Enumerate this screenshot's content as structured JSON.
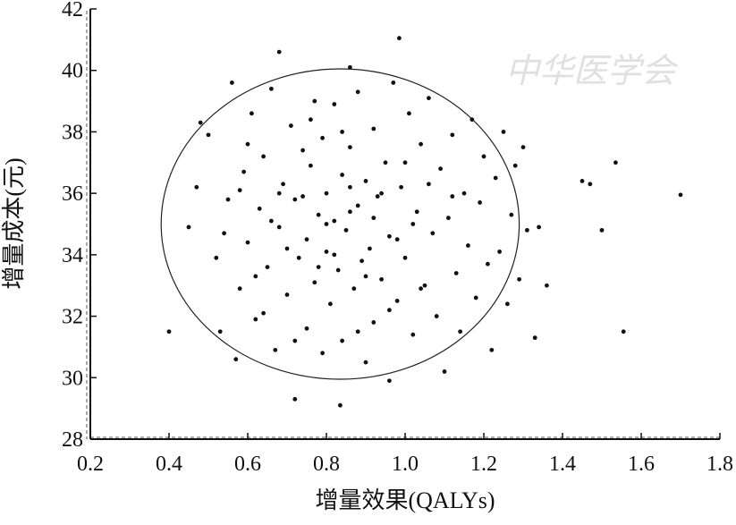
{
  "chart_data": {
    "type": "scatter",
    "xlabel": "增量效果(QALYs)",
    "ylabel": "增量成本(元)",
    "watermark": "中华医学会",
    "color": "#111111",
    "xlim": [
      0.2,
      1.8
    ],
    "ylim": [
      28,
      42
    ],
    "xticks": [
      0.2,
      0.4,
      0.6,
      0.8,
      {
        "value": 1,
        "label": "1.0"
      },
      1.2,
      1.4,
      1.6,
      1.8
    ],
    "yticks": [
      28,
      30,
      32,
      34,
      36,
      38,
      40,
      42
    ],
    "ellipse": {
      "cx": 0.835,
      "cy": 35.0,
      "rx": 0.455,
      "ry": 5.05
    },
    "x": [
      0.4,
      0.45,
      0.47,
      0.48,
      0.5,
      0.52,
      0.53,
      0.55,
      0.56,
      0.57,
      0.58,
      0.59,
      0.6,
      0.61,
      0.62,
      0.63,
      0.64,
      0.65,
      0.66,
      0.67,
      0.68,
      0.68,
      0.69,
      0.7,
      0.71,
      0.72,
      0.72,
      0.73,
      0.74,
      0.75,
      0.75,
      0.76,
      0.77,
      0.77,
      0.78,
      0.79,
      0.79,
      0.8,
      0.8,
      0.81,
      0.82,
      0.82,
      0.83,
      0.835,
      0.84,
      0.84,
      0.85,
      0.86,
      0.86,
      0.87,
      0.88,
      0.88,
      0.89,
      0.9,
      0.9,
      0.91,
      0.92,
      0.92,
      0.93,
      0.94,
      0.95,
      0.96,
      0.96,
      0.97,
      0.98,
      0.985,
      0.99,
      1.0,
      1.01,
      1.02,
      1.03,
      1.04,
      1.05,
      1.06,
      1.07,
      1.08,
      1.09,
      1.1,
      1.11,
      1.12,
      1.13,
      1.14,
      1.15,
      1.16,
      1.17,
      1.18,
      1.19,
      1.2,
      1.21,
      1.22,
      1.23,
      1.24,
      1.25,
      1.26,
      1.27,
      1.28,
      1.29,
      1.3,
      1.31,
      1.33,
      1.34,
      1.36,
      1.45,
      1.47,
      1.5,
      1.535,
      1.555,
      1.7,
      0.54,
      0.58,
      0.62,
      0.66,
      0.7,
      0.74,
      0.78,
      0.82,
      0.86,
      0.9,
      0.94,
      0.98,
      1.02,
      1.06,
      0.64,
      0.72,
      0.88,
      0.96,
      0.76,
      0.84,
      1.0,
      0.6,
      0.68,
      1.12,
      1.04,
      0.86,
      0.8,
      0.92
    ],
    "values": [
      31.5,
      34.9,
      36.2,
      38.3,
      37.9,
      33.9,
      31.5,
      35.8,
      39.6,
      30.6,
      32.9,
      36.7,
      34.4,
      38.6,
      31.9,
      35.5,
      37.2,
      33.6,
      39.4,
      30.9,
      40.6,
      34.9,
      36.3,
      32.7,
      38.2,
      29.3,
      35.8,
      33.9,
      37.4,
      31.6,
      34.5,
      36.9,
      39.0,
      33.1,
      35.3,
      30.8,
      37.8,
      34.1,
      36.0,
      32.4,
      38.9,
      35.1,
      33.5,
      29.1,
      36.6,
      31.2,
      34.8,
      37.5,
      40.1,
      32.9,
      35.6,
      39.3,
      33.8,
      36.4,
      30.5,
      34.2,
      38.1,
      31.8,
      35.9,
      33.2,
      37.0,
      29.9,
      34.6,
      39.6,
      32.5,
      41.05,
      36.2,
      33.9,
      38.6,
      31.4,
      35.4,
      37.6,
      33.0,
      39.1,
      34.7,
      32.0,
      36.8,
      30.2,
      35.2,
      37.9,
      33.4,
      31.5,
      36.0,
      34.3,
      38.4,
      32.6,
      35.7,
      37.2,
      33.7,
      30.9,
      36.5,
      34.1,
      38.0,
      32.4,
      35.3,
      36.9,
      33.2,
      37.5,
      34.8,
      31.3,
      34.9,
      33.0,
      36.4,
      36.3,
      34.8,
      37.0,
      31.5,
      35.95,
      34.7,
      36.1,
      33.3,
      35.1,
      34.2,
      35.9,
      33.6,
      34.0,
      35.4,
      33.3,
      36.0,
      34.5,
      35.0,
      36.3,
      32.1,
      31.2,
      31.5,
      32.2,
      38.4,
      38.0,
      37.0,
      37.6,
      36.0,
      35.9,
      32.9,
      36.2,
      35.0,
      35.2
    ]
  }
}
